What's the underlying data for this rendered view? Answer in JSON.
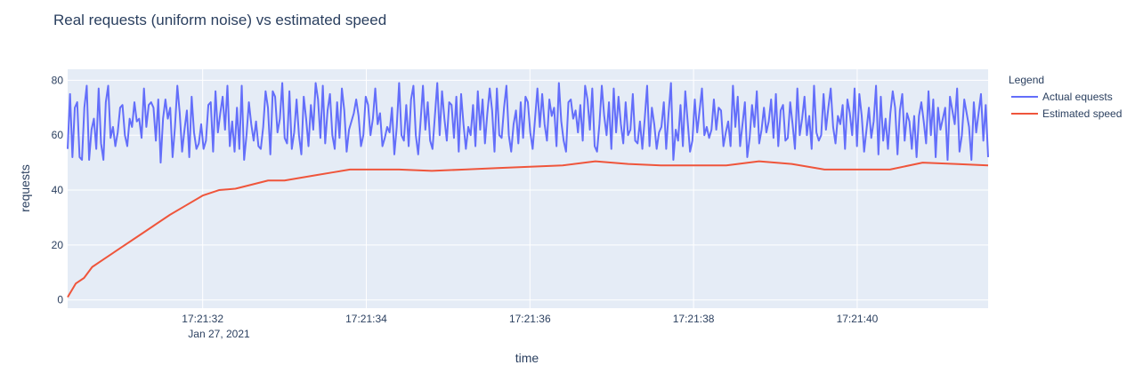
{
  "chart_data": {
    "type": "line",
    "title": "Real requests (uniform noise) vs estimated speed",
    "xlabel": "time",
    "ylabel": "requests",
    "x_ticks": [
      "17:21:32",
      "17:21:34",
      "17:21:36",
      "17:21:38",
      "17:21:40"
    ],
    "x_tick_date": "Jan 27, 2021",
    "x_range": [
      "17:21:30.35",
      "17:21:41.60"
    ],
    "y_range": [
      -3,
      84
    ],
    "y_ticks": [
      0,
      20,
      40,
      60,
      80
    ],
    "grid": true,
    "legend": {
      "title": "Legend",
      "placement": "right",
      "entries": [
        "Actual equests",
        "Estimated speed"
      ]
    },
    "colors": {
      "plot_bg": "#e5ecf6",
      "grid": "#ffffff",
      "text": "#2a3f5f",
      "actual": "#636efa",
      "estimated": "#ef553b"
    },
    "series": [
      {
        "name": "Actual equests",
        "x_start": "17:21:30.35",
        "x_end": "17:21:41.60",
        "values": [
          55,
          75,
          52,
          70,
          72,
          52,
          51,
          70,
          78,
          51,
          62,
          66,
          55,
          77,
          57,
          51,
          72,
          78,
          59,
          63,
          56,
          61,
          70,
          71,
          60,
          56,
          66,
          63,
          72,
          65,
          66,
          59,
          77,
          63,
          71,
          72,
          70,
          58,
          73,
          50,
          66,
          73,
          66,
          70,
          52,
          63,
          78,
          68,
          54,
          62,
          69,
          52,
          74,
          61,
          55,
          57,
          64,
          55,
          58,
          71,
          72,
          54,
          76,
          61,
          68,
          74,
          62,
          78,
          56,
          65,
          54,
          70,
          55,
          78,
          51,
          60,
          72,
          64,
          58,
          65,
          56,
          55,
          63,
          76,
          70,
          53,
          76,
          74,
          61,
          66,
          79,
          59,
          57,
          76,
          55,
          61,
          73,
          60,
          53,
          74,
          66,
          56,
          71,
          62,
          79,
          73,
          59,
          78,
          57,
          69,
          75,
          60,
          55,
          72,
          59,
          77,
          69,
          54,
          62,
          65,
          68,
          73,
          67,
          56,
          60,
          74,
          71,
          60,
          66,
          77,
          64,
          68,
          56,
          59,
          63,
          61,
          70,
          53,
          63,
          79,
          60,
          58,
          71,
          56,
          73,
          78,
          60,
          53,
          65,
          78,
          62,
          72,
          58,
          55,
          67,
          79,
          60,
          76,
          66,
          58,
          72,
          71,
          59,
          74,
          54,
          75,
          64,
          55,
          63,
          60,
          71,
          56,
          76,
          62,
          73,
          57,
          68,
          77,
          69,
          54,
          77,
          60,
          59,
          70,
          78,
          60,
          54,
          64,
          69,
          57,
          72,
          59,
          74,
          72,
          61,
          55,
          66,
          77,
          63,
          75,
          64,
          58,
          73,
          67,
          70,
          56,
          79,
          65,
          58,
          54,
          72,
          73,
          66,
          69,
          61,
          71,
          58,
          78,
          73,
          62,
          77,
          56,
          54,
          64,
          78,
          67,
          60,
          72,
          55,
          77,
          61,
          74,
          64,
          57,
          72,
          60,
          62,
          75,
          58,
          57,
          65,
          55,
          66,
          78,
          56,
          70,
          64,
          55,
          61,
          63,
          72,
          55,
          68,
          79,
          51,
          62,
          58,
          71,
          56,
          76,
          65,
          54,
          58,
          73,
          61,
          69,
          77,
          60,
          63,
          59,
          62,
          73,
          62,
          70,
          69,
          56,
          61,
          65,
          56,
          78,
          63,
          74,
          56,
          64,
          72,
          52,
          59,
          71,
          63,
          76,
          57,
          62,
          70,
          61,
          65,
          73,
          59,
          75,
          56,
          69,
          71,
          58,
          59,
          72,
          64,
          55,
          77,
          60,
          66,
          74,
          60,
          67,
          55,
          78,
          61,
          58,
          60,
          75,
          62,
          70,
          77,
          63,
          57,
          67,
          64,
          71,
          55,
          73,
          68,
          60,
          77,
          56,
          75,
          67,
          54,
          62,
          70,
          59,
          65,
          78,
          53,
          74,
          58,
          66,
          55,
          68,
          76,
          70,
          53,
          69,
          75,
          58,
          68,
          65,
          55,
          67,
          52,
          67,
          72,
          65,
          57,
          76,
          60,
          73,
          52,
          70,
          62,
          66,
          70,
          51,
          74,
          69,
          64,
          77,
          54,
          60,
          73,
          68,
          63,
          51,
          72,
          61,
          68,
          75,
          58,
          71,
          52
        ]
      },
      {
        "name": "Estimated speed",
        "points": [
          [
            "17:21:30.35",
            1
          ],
          [
            "17:21:30.45",
            6
          ],
          [
            "17:21:30.55",
            8
          ],
          [
            "17:21:30.65",
            12
          ],
          [
            "17:21:30.80",
            15
          ],
          [
            "17:21:31.00",
            19
          ],
          [
            "17:21:31.20",
            23
          ],
          [
            "17:21:31.40",
            27
          ],
          [
            "17:21:31.60",
            31
          ],
          [
            "17:21:31.80",
            34.5
          ],
          [
            "17:21:32.00",
            38
          ],
          [
            "17:21:32.20",
            40
          ],
          [
            "17:21:32.40",
            40.5
          ],
          [
            "17:21:32.60",
            42
          ],
          [
            "17:21:32.80",
            43.5
          ],
          [
            "17:21:33.00",
            43.5
          ],
          [
            "17:21:33.20",
            44.5
          ],
          [
            "17:21:33.40",
            45.5
          ],
          [
            "17:21:33.60",
            46.5
          ],
          [
            "17:21:33.80",
            47.5
          ],
          [
            "17:21:34.00",
            47.5
          ],
          [
            "17:21:34.40",
            47.5
          ],
          [
            "17:21:34.80",
            47
          ],
          [
            "17:21:35.20",
            47.5
          ],
          [
            "17:21:35.60",
            48
          ],
          [
            "17:21:36.00",
            48.5
          ],
          [
            "17:21:36.40",
            49
          ],
          [
            "17:21:36.80",
            50.5
          ],
          [
            "17:21:37.20",
            49.5
          ],
          [
            "17:21:37.60",
            49
          ],
          [
            "17:21:38.00",
            49
          ],
          [
            "17:21:38.40",
            49
          ],
          [
            "17:21:38.80",
            50.5
          ],
          [
            "17:21:39.20",
            49.5
          ],
          [
            "17:21:39.60",
            47.5
          ],
          [
            "17:21:40.00",
            47.5
          ],
          [
            "17:21:40.40",
            47.5
          ],
          [
            "17:21:40.80",
            50
          ],
          [
            "17:21:41.20",
            49.5
          ],
          [
            "17:21:41.60",
            49
          ]
        ]
      }
    ]
  }
}
